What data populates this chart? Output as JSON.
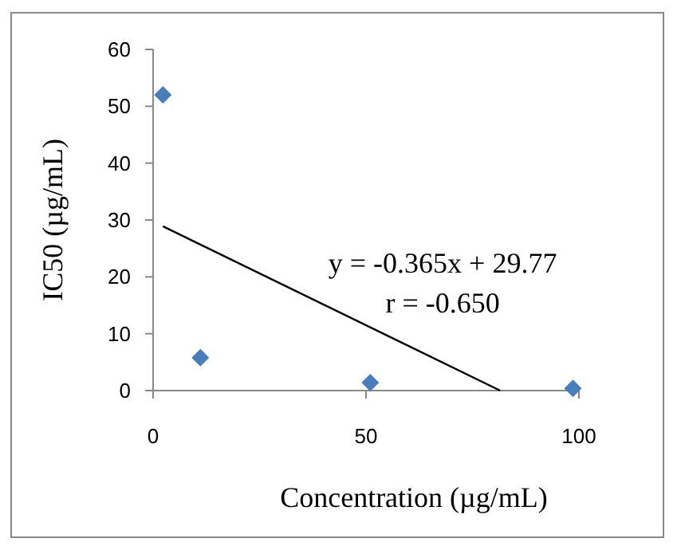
{
  "chart_data": {
    "type": "scatter",
    "xlabel": "Concentration (µg/mL)",
    "ylabel": "IC50 (µg/mL)",
    "xlim": [
      0,
      100
    ],
    "xticks": [
      0,
      50,
      100
    ],
    "ylim": [
      0,
      60
    ],
    "yticks": [
      0,
      10,
      20,
      30,
      40,
      50,
      60
    ],
    "grid": false,
    "series": [
      {
        "color": "#4a7ebb",
        "marker": "diamond",
        "x": [
          2.3,
          11.1,
          51,
          98.6
        ],
        "values": [
          52,
          5.8,
          1.4,
          0.4
        ]
      },
      {
        "type": "line",
        "color": "#000000",
        "marker": "none",
        "x": [
          2.3,
          81.5
        ],
        "values": [
          28.9,
          0
        ]
      }
    ],
    "annotations": [
      "y = -0.365x + 29.77",
      "r = -0.650"
    ]
  }
}
